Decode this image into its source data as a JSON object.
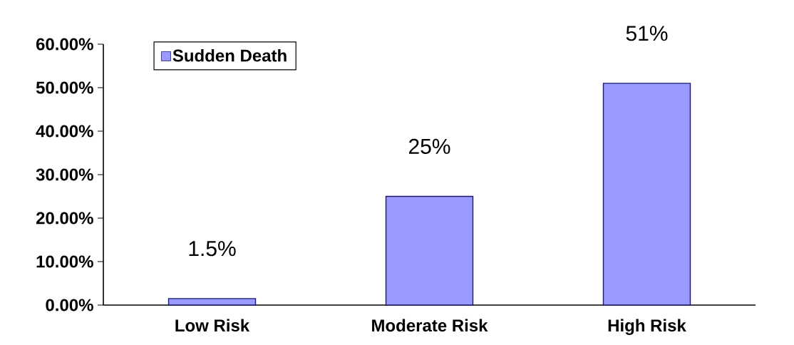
{
  "chart_data": {
    "type": "bar",
    "categories": [
      "Low Risk",
      "Moderate Risk",
      "High Risk"
    ],
    "series": [
      {
        "name": "Sudden Death",
        "color": "#9999ff",
        "values": [
          1.5,
          25,
          51
        ],
        "value_labels": [
          "1.5%",
          "25%",
          "51%"
        ]
      }
    ],
    "ylim": [
      0,
      60
    ],
    "yticks": [
      {
        "value": 0,
        "label": "0.00%"
      },
      {
        "value": 10,
        "label": "10.00%"
      },
      {
        "value": 20,
        "label": "20.00%"
      },
      {
        "value": 30,
        "label": "30.00%"
      },
      {
        "value": 40,
        "label": "40.00%"
      },
      {
        "value": 50,
        "label": "50.00%"
      },
      {
        "value": 60,
        "label": "60.00%"
      }
    ],
    "legend": "top left",
    "grid": false
  }
}
